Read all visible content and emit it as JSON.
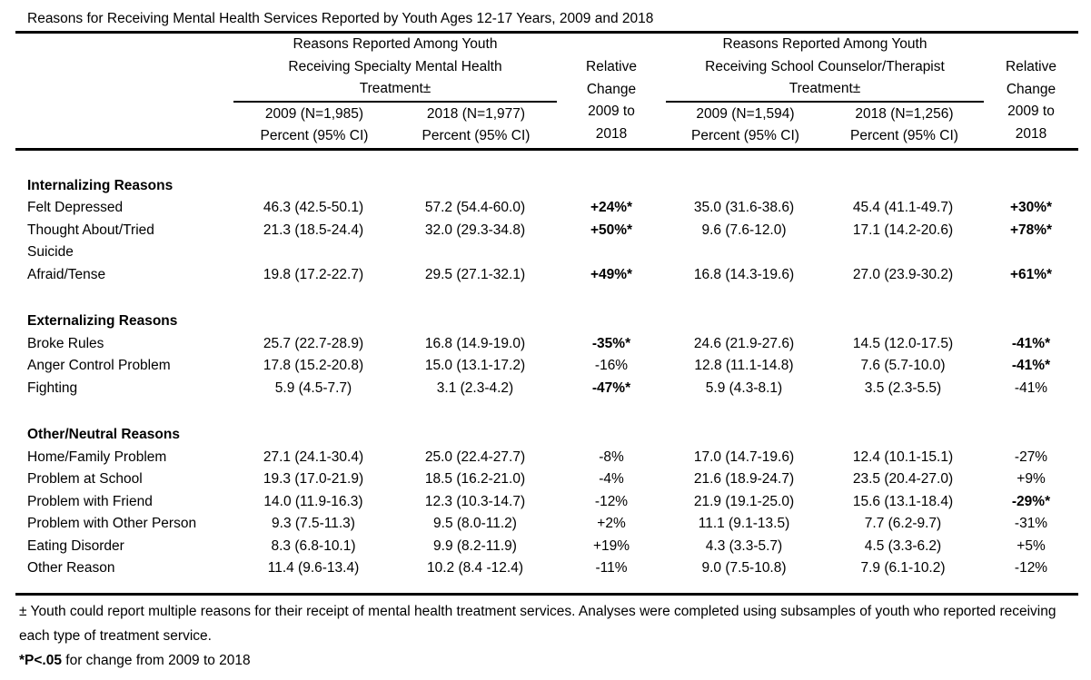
{
  "title": "Reasons for Receiving Mental Health Services Reported by Youth Ages 12-17 Years, 2009 and 2018",
  "table": {
    "header": {
      "specialty_group": {
        "line1": "Reasons Reported Among Youth",
        "line2": "Receiving Specialty Mental Health",
        "line3": "Treatment±",
        "col_2009_line1": "2009 (N=1,985)",
        "col_2009_line2": "Percent (95% CI)",
        "col_2018_line1": "2018 (N=1,977)",
        "col_2018_line2": "Percent (95% CI)"
      },
      "relative_change_specialty": {
        "line1": "Relative",
        "line2": "Change",
        "line3": "2009 to",
        "line4": "2018"
      },
      "school_group": {
        "line1": "Reasons Reported Among Youth",
        "line2": "Receiving School Counselor/Therapist",
        "line3": "Treatment±",
        "col_2009_line1": "2009 (N=1,594)",
        "col_2009_line2": "Percent (95% CI)",
        "col_2018_line1": "2018 (N=1,256)",
        "col_2018_line2": "Percent (95% CI)"
      },
      "relative_change_school": {
        "line1": "Relative",
        "line2": "Change",
        "line3": "2009 to",
        "line4": "2018"
      }
    },
    "sections": [
      {
        "name": "Internalizing Reasons",
        "rows": [
          {
            "reason": "Felt Depressed",
            "specialty_2009": "46.3 (42.5-50.1)",
            "specialty_2018": "57.2 (54.4-60.0)",
            "change_specialty": "+24%*",
            "school_2009": "35.0 (31.6-38.6)",
            "school_2018": "45.4 (41.1-49.7)",
            "change_school": "+30%*"
          },
          {
            "reason": "Thought About/Tried\nSuicide",
            "specialty_2009": "21.3 (18.5-24.4)",
            "specialty_2018": "32.0 (29.3-34.8)",
            "change_specialty": "+50%*",
            "school_2009": "9.6 (7.6-12.0)",
            "school_2018": "17.1 (14.2-20.6)",
            "change_school": "+78%*"
          },
          {
            "reason": "Afraid/Tense",
            "specialty_2009": "19.8 (17.2-22.7)",
            "specialty_2018": "29.5 (27.1-32.1)",
            "change_specialty": "+49%*",
            "school_2009": "16.8 (14.3-19.6)",
            "school_2018": "27.0 (23.9-30.2)",
            "change_school": "+61%*"
          }
        ]
      },
      {
        "name": "Externalizing Reasons",
        "rows": [
          {
            "reason": "Broke Rules",
            "specialty_2009": "25.7 (22.7-28.9)",
            "specialty_2018": "16.8 (14.9-19.0)",
            "change_specialty": "-35%*",
            "school_2009": "24.6 (21.9-27.6)",
            "school_2018": "14.5 (12.0-17.5)",
            "change_school": "-41%*"
          },
          {
            "reason": "Anger Control Problem",
            "specialty_2009": "17.8 (15.2-20.8)",
            "specialty_2018": "15.0 (13.1-17.2)",
            "change_specialty": "-16%",
            "school_2009": "12.8 (11.1-14.8)",
            "school_2018": "7.6 (5.7-10.0)",
            "change_school": "-41%*"
          },
          {
            "reason": "Fighting",
            "specialty_2009": "5.9 (4.5-7.7)",
            "specialty_2018": "3.1 (2.3-4.2)",
            "change_specialty": "-47%*",
            "school_2009": "5.9 (4.3-8.1)",
            "school_2018": "3.5 (2.3-5.5)",
            "change_school": "-41%"
          }
        ]
      },
      {
        "name": "Other/Neutral Reasons",
        "rows": [
          {
            "reason": "Home/Family Problem",
            "specialty_2009": "27.1 (24.1-30.4)",
            "specialty_2018": "25.0 (22.4-27.7)",
            "change_specialty": "-8%",
            "school_2009": "17.0 (14.7-19.6)",
            "school_2018": "12.4 (10.1-15.1)",
            "change_school": "-27%"
          },
          {
            "reason": "Problem at School",
            "specialty_2009": "19.3 (17.0-21.9)",
            "specialty_2018": "18.5 (16.2-21.0)",
            "change_specialty": "-4%",
            "school_2009": "21.6 (18.9-24.7)",
            "school_2018": "23.5 (20.4-27.0)",
            "change_school": "+9%"
          },
          {
            "reason": "Problem with Friend",
            "specialty_2009": "14.0 (11.9-16.3)",
            "specialty_2018": "12.3 (10.3-14.7)",
            "change_specialty": "-12%",
            "school_2009": "21.9 (19.1-25.0)",
            "school_2018": "15.6 (13.1-18.4)",
            "change_school": "-29%*"
          },
          {
            "reason": "Problem with Other Person",
            "specialty_2009": "9.3 (7.5-11.3)",
            "specialty_2018": "9.5 (8.0-11.2)",
            "change_specialty": "+2%",
            "school_2009": "11.1 (9.1-13.5)",
            "school_2018": "7.7 (6.2-9.7)",
            "change_school": "-31%"
          },
          {
            "reason": "Eating Disorder",
            "specialty_2009": "8.3 (6.8-10.1)",
            "specialty_2018": "9.9 (8.2-11.9)",
            "change_specialty": "+19%",
            "school_2009": "4.3 (3.3-5.7)",
            "school_2018": "4.5 (3.3-6.2)",
            "change_school": "+5%"
          },
          {
            "reason": "Other Reason",
            "specialty_2009": "11.4 (9.6-13.4)",
            "specialty_2018": "10.2 (8.4 -12.4)",
            "change_specialty": "-11%",
            "school_2009": "9.0 (7.5-10.8)",
            "school_2018": "7.9 (6.1-10.2)",
            "change_school": "-12%"
          }
        ]
      }
    ]
  },
  "footnotes": {
    "multiple_reasons": "± Youth could report multiple reasons for their receipt of mental health treatment services. Analyses were completed using subsamples of youth who reported receiving each type of treatment service.",
    "significance_bold": "*P<.05",
    "significance_rest": " for change from 2009 to 2018"
  }
}
